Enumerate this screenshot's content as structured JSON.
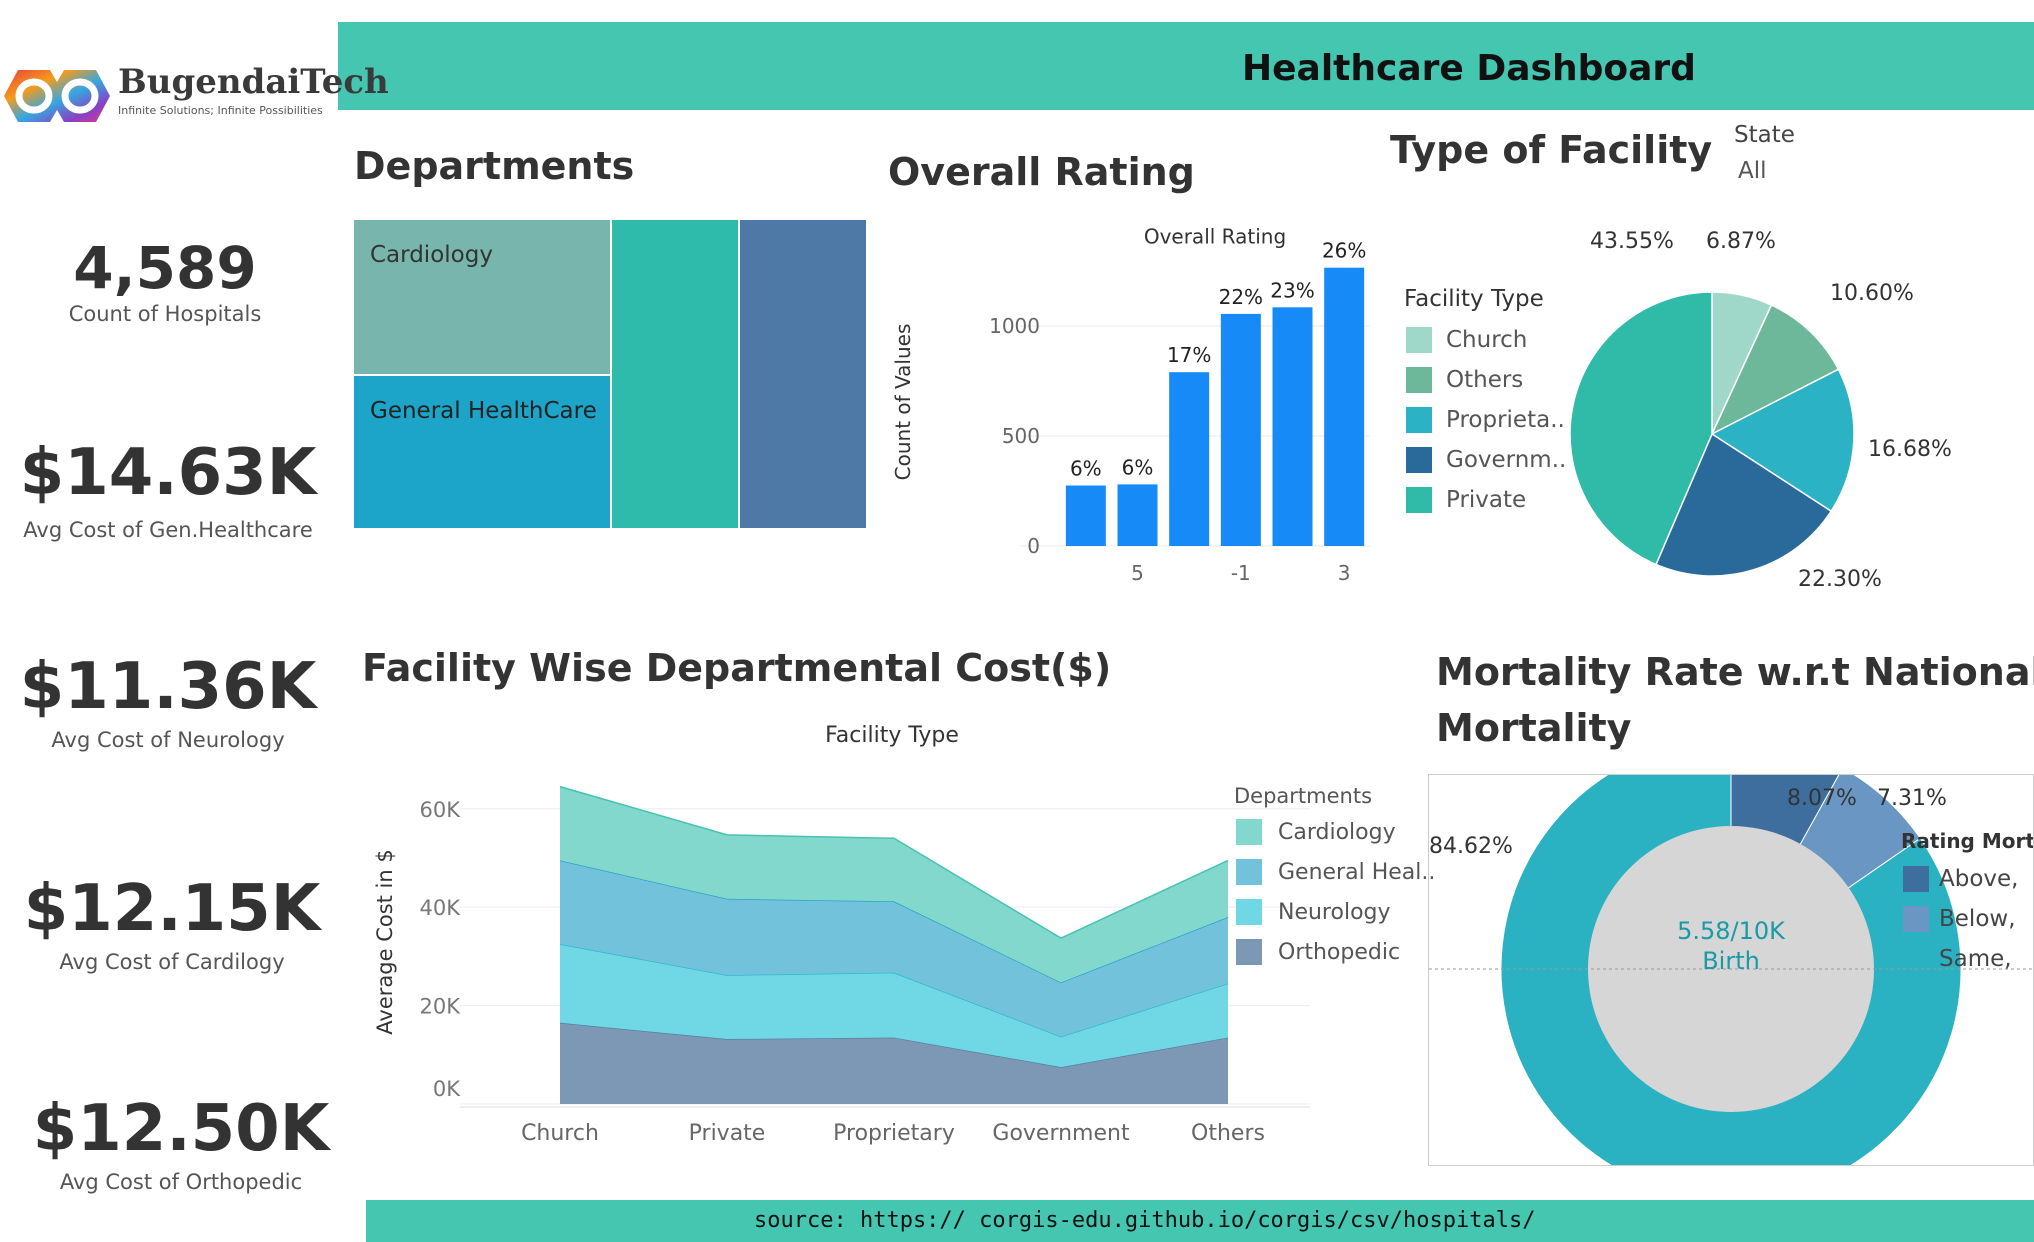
{
  "header": {
    "title": "Healthcare Dashboard"
  },
  "logo": {
    "name": "BugendaiTech",
    "tagline": "Infinite Solutions; Infinite Possibilities"
  },
  "kpis": [
    {
      "value": "4,589",
      "label": "Count of Hospitals"
    },
    {
      "value": "$14.63K",
      "label": "Avg Cost of Gen.Healthcare"
    },
    {
      "value": "$11.36K",
      "label": "Avg Cost of  Neurology"
    },
    {
      "value": "$12.15K",
      "label": "Avg Cost of Cardilogy"
    },
    {
      "value": "$12.50K",
      "label": "Avg Cost of  Orthopedic"
    }
  ],
  "departments": {
    "title": "Departments",
    "labels": [
      "Cardiology",
      "General HealthCare"
    ],
    "colors": [
      "#78b6ad",
      "#1ca4c9",
      "#2fbbab",
      "#4e79a7"
    ]
  },
  "overall_rating": {
    "title": "Overall Rating",
    "chart_title": "Overall Rating",
    "ylabel": "Count of Values",
    "yticks": [
      "1000",
      "500",
      "0"
    ],
    "xticks": [
      "5",
      "-1",
      "3"
    ],
    "bar_color": "#168bf7"
  },
  "facility": {
    "title": "Type of Facility",
    "state_label": "State",
    "state_value": "All",
    "legend_title": "Facility Type",
    "legend": [
      {
        "label": "Church",
        "color": "#9fd8c9"
      },
      {
        "label": "Others",
        "color": "#6db89a"
      },
      {
        "label": "Proprieta..",
        "color": "#2bb3c5"
      },
      {
        "label": "Governm..",
        "color": "#2a6a9a"
      },
      {
        "label": "Private",
        "color": "#2fbba8"
      }
    ]
  },
  "cost": {
    "title": "Facility Wise Departmental Cost($)",
    "chart_title": "Facility Type",
    "ylabel": "Average Cost in $",
    "yticks": [
      "60K",
      "40K",
      "20K",
      "0K"
    ],
    "legend_title": "Departments",
    "legend": [
      {
        "label": "Cardiology",
        "color": "#82d8cc"
      },
      {
        "label": "General Heal..",
        "color": "#72c2dc"
      },
      {
        "label": "Neurology",
        "color": "#6fd8e4"
      },
      {
        "label": "Orthopedic",
        "color": "#7d98b4"
      }
    ]
  },
  "mortality": {
    "title_line1": "Mortality Rate w.r.t National",
    "title_line2": "Mortality",
    "center_line1": "5.58/10K",
    "center_line2": "Birth",
    "legend_title": "Rating Morta",
    "legend": [
      {
        "label": "Above,",
        "color": "#3e6e9e"
      },
      {
        "label": "Below,",
        "color": "#6996c3"
      },
      {
        "label": "Same,",
        "color": "#2ab2c2"
      }
    ]
  },
  "footer": {
    "source": "source: https:// corgis-edu.github.io/corgis/csv/hospitals/"
  },
  "chart_data": [
    {
      "type": "bar",
      "title": "Overall Rating",
      "xlabel": "",
      "ylabel": "Count of Values",
      "categories": [
        "",
        "5",
        "",
        "-1",
        "",
        "3"
      ],
      "values": [
        275,
        280,
        790,
        1055,
        1085,
        1265
      ],
      "data_labels": [
        "6%",
        "6%",
        "17%",
        "22%",
        "23%",
        "26%"
      ],
      "ylim": [
        0,
        1300
      ]
    },
    {
      "type": "pie",
      "title": "Type of Facility",
      "categories": [
        "Church",
        "Others",
        "Proprietary",
        "Government",
        "Private"
      ],
      "values": [
        6.87,
        10.6,
        16.68,
        22.3,
        43.55
      ],
      "data_labels": [
        "6.87%",
        "10.60%",
        "16.68%",
        "22.30%",
        "43.55%"
      ]
    },
    {
      "type": "area",
      "title": "Facility Type",
      "xlabel": "",
      "ylabel": "Average Cost in $",
      "categories": [
        "Church",
        "Private",
        "Proprietary",
        "Government",
        "Others"
      ],
      "series": [
        {
          "name": "Orthopedic",
          "values": [
            16500,
            13200,
            13500,
            7500,
            13500
          ]
        },
        {
          "name": "Neurology",
          "values": [
            16000,
            13000,
            13200,
            6200,
            11000
          ]
        },
        {
          "name": "General Heal..",
          "values": [
            17000,
            15500,
            14500,
            11000,
            13500
          ]
        },
        {
          "name": "Cardiology",
          "values": [
            15000,
            13000,
            12800,
            9000,
            11500
          ]
        }
      ],
      "stacked": true,
      "ylim": [
        0,
        65000
      ]
    },
    {
      "type": "pie",
      "title": "Mortality Rate w.r.t National Mortality",
      "categories": [
        "Above,",
        "Below,",
        "Same,"
      ],
      "values": [
        8.07,
        7.31,
        84.62
      ],
      "data_labels": [
        "8.07%",
        "7.31%",
        "84.62%"
      ]
    }
  ]
}
